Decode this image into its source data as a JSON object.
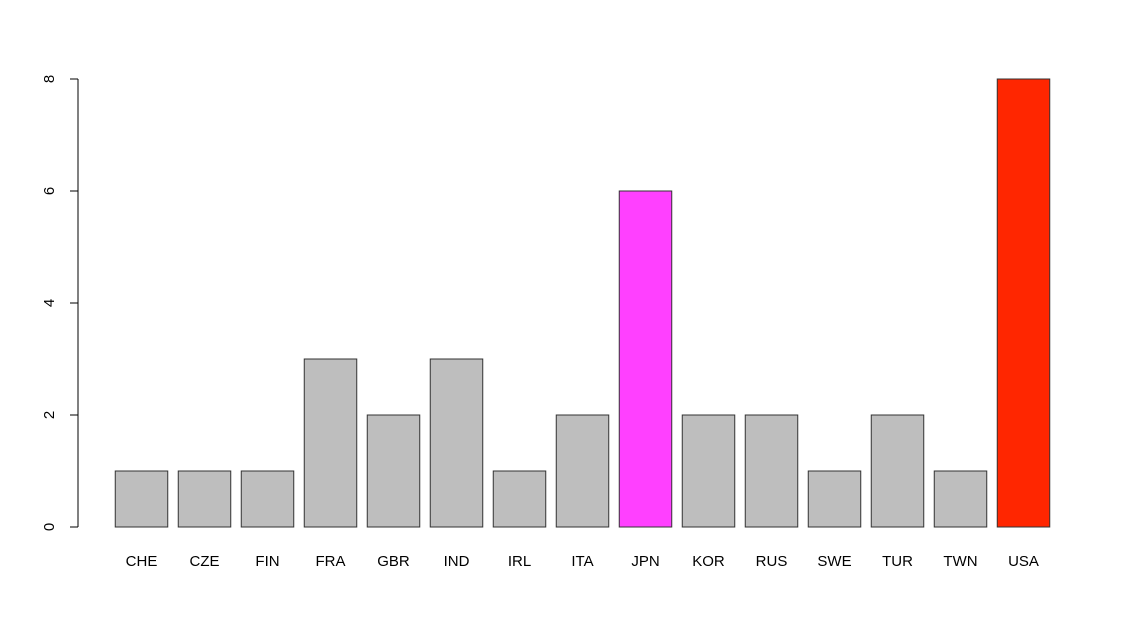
{
  "chart_data": {
    "type": "bar",
    "categories": [
      "CHE",
      "CZE",
      "FIN",
      "FRA",
      "GBR",
      "IND",
      "IRL",
      "ITA",
      "JPN",
      "KOR",
      "RUS",
      "SWE",
      "TUR",
      "TWN",
      "USA"
    ],
    "values": [
      1,
      1,
      1,
      3,
      2,
      3,
      1,
      2,
      6,
      2,
      2,
      1,
      2,
      1,
      8
    ],
    "colors": [
      "#bebebe",
      "#bebebe",
      "#bebebe",
      "#bebebe",
      "#bebebe",
      "#bebebe",
      "#bebebe",
      "#bebebe",
      "#ff40ff",
      "#bebebe",
      "#bebebe",
      "#bebebe",
      "#bebebe",
      "#bebebe",
      "#ff2600"
    ],
    "ylim": [
      0,
      8
    ],
    "yticks": [
      0,
      2,
      4,
      6,
      8
    ],
    "grid": false
  }
}
